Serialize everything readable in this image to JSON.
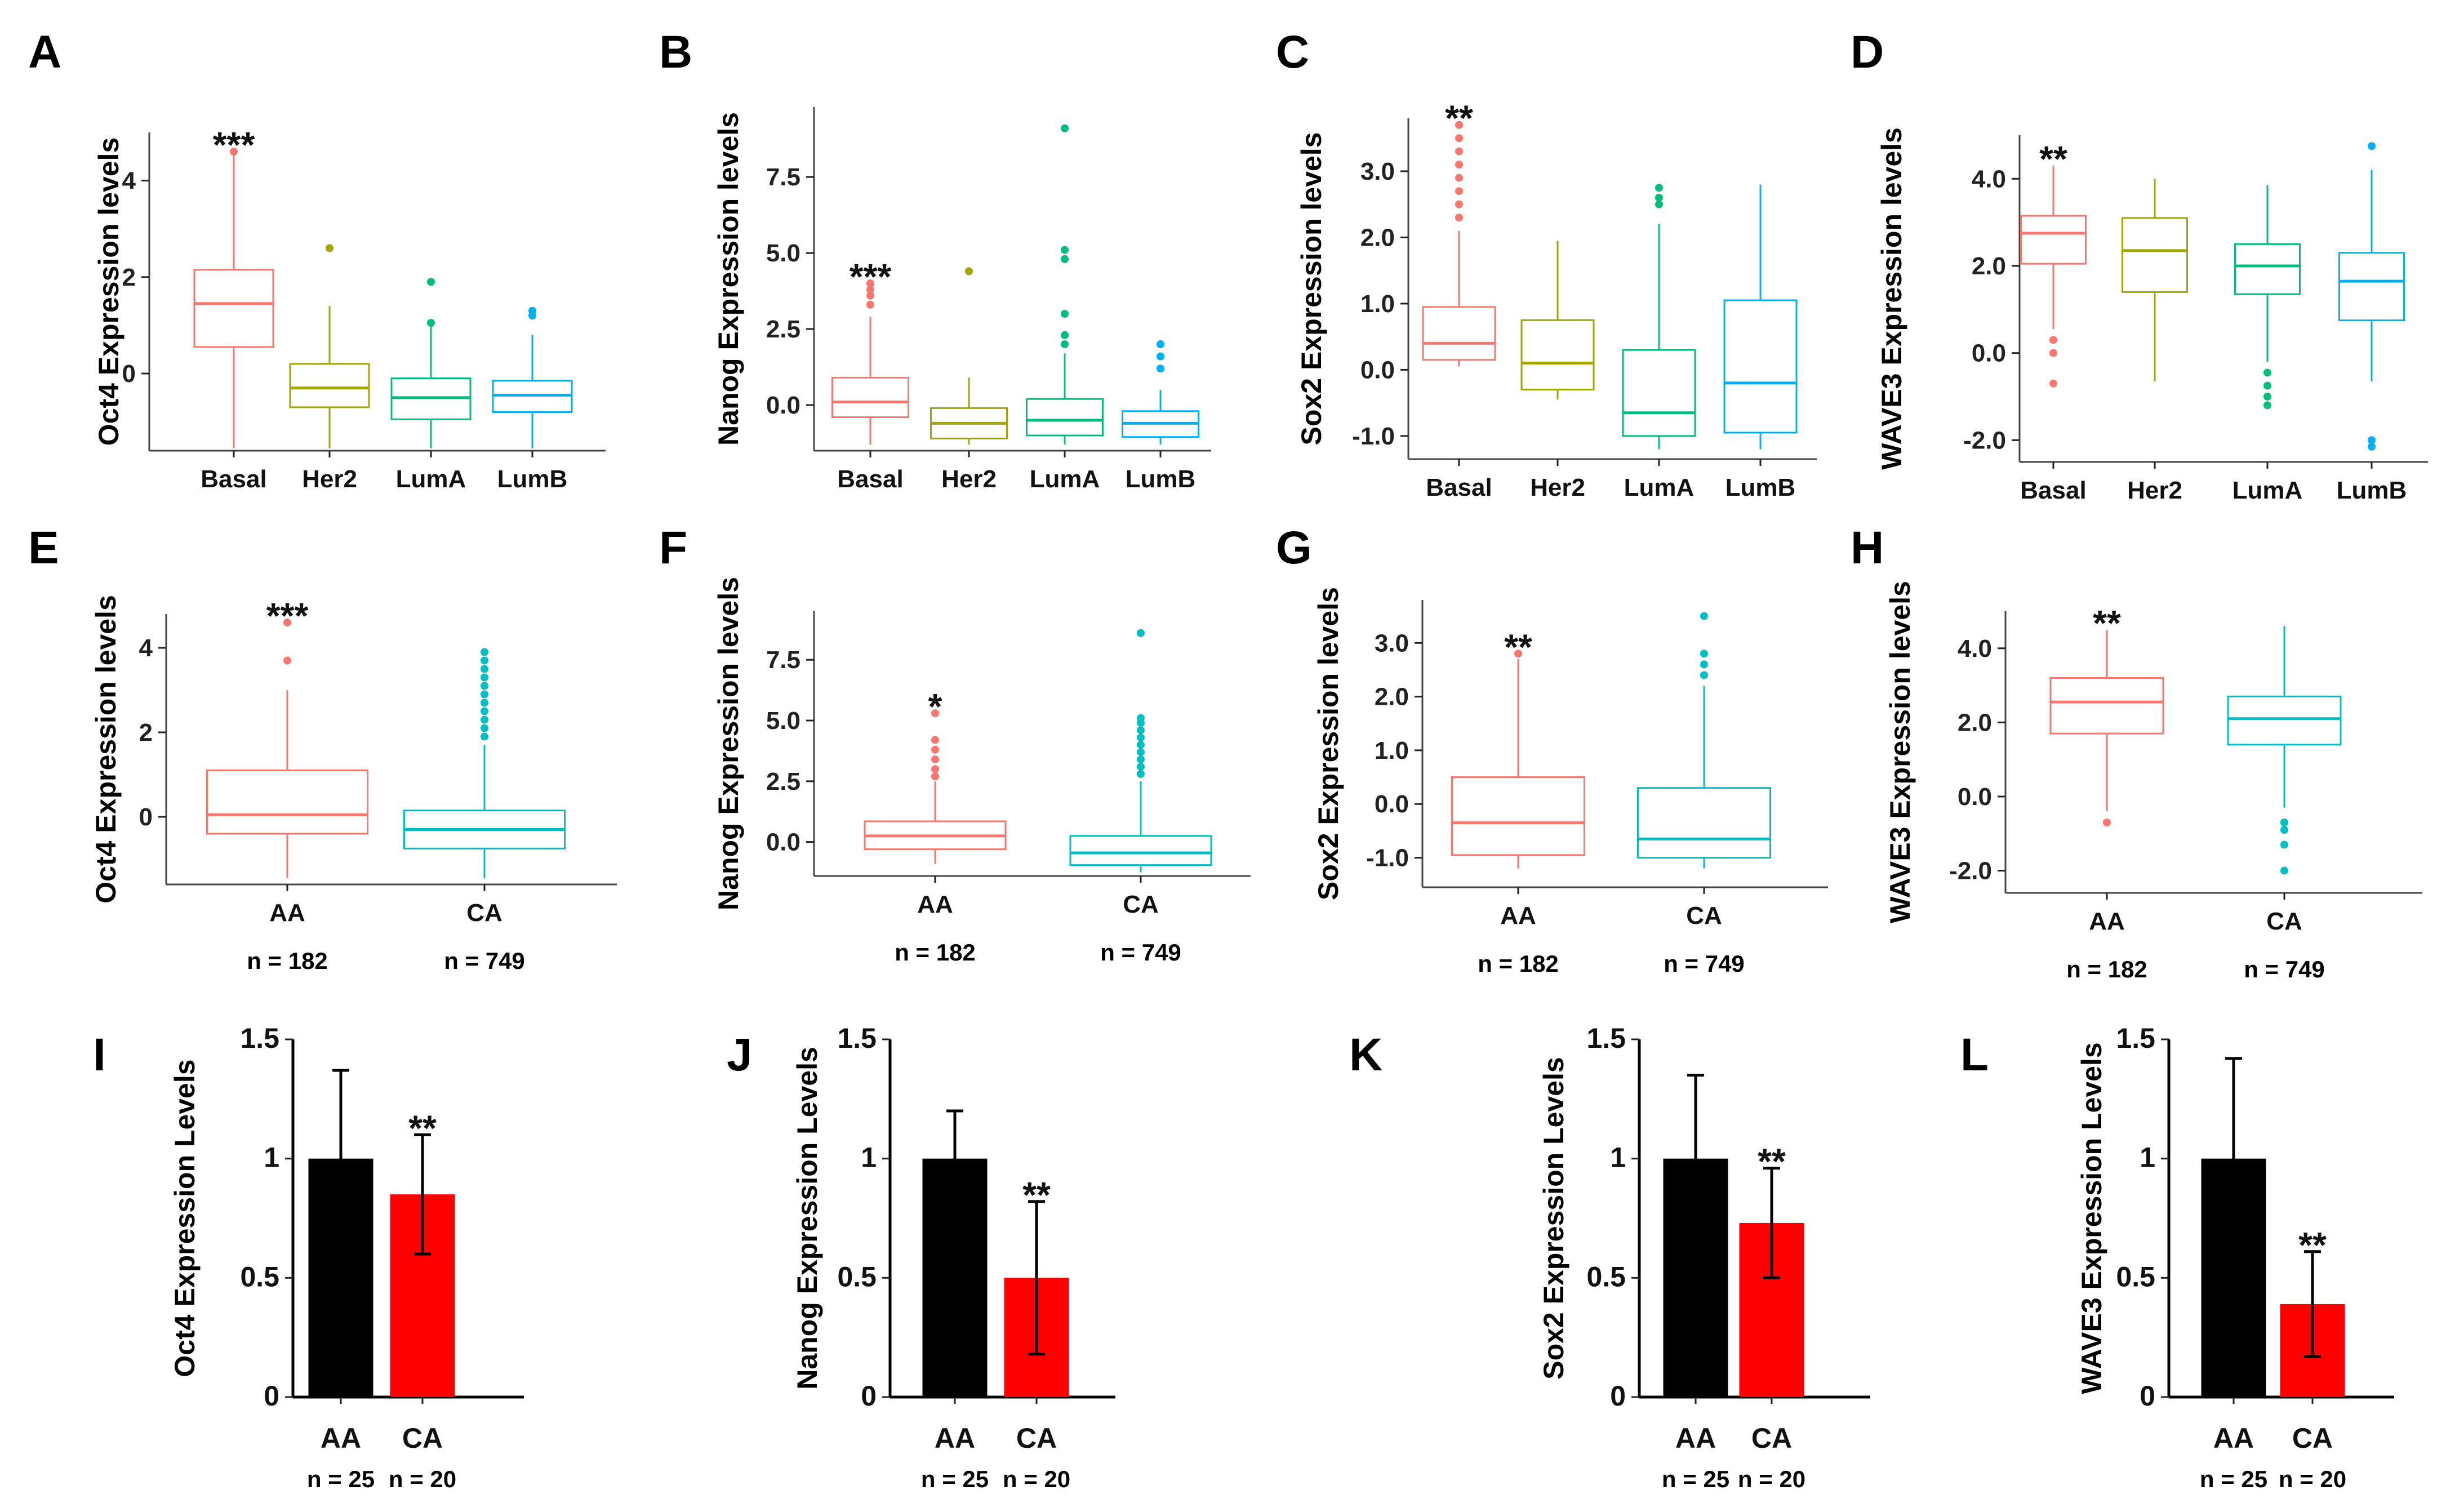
{
  "figure": {
    "colors": {
      "basal": "#f8766d",
      "her2": "#a3a500",
      "luma": "#00bf7d",
      "lumb": "#00b0f6",
      "aa": "#f8766d",
      "ca": "#00bfc4",
      "bar_aa": "#000000",
      "bar_ca": "#ff0000"
    }
  },
  "chart_data": [
    {
      "panel": "A",
      "type": "box",
      "ylabel": "Oct4 Expression levels",
      "categories": [
        "Basal",
        "Her2",
        "LumA",
        "LumB"
      ],
      "yticks": [
        "0",
        "2",
        "4"
      ],
      "ytick_values": [
        0,
        2,
        4
      ],
      "ylim": [
        -1.6,
        5.0
      ],
      "significance": {
        "category": 0,
        "label": "***"
      },
      "boxes": [
        {
          "q1": 0.55,
          "median": 1.45,
          "q3": 2.15,
          "lo": -1.55,
          "hi": 4.6,
          "outliers": [
            4.6
          ]
        },
        {
          "q1": -0.7,
          "median": -0.3,
          "q3": 0.2,
          "lo": -1.55,
          "hi": 1.4,
          "outliers": [
            2.6
          ]
        },
        {
          "q1": -0.95,
          "median": -0.5,
          "q3": -0.1,
          "lo": -1.55,
          "hi": 1.0,
          "outliers": [
            1.9,
            1.05
          ]
        },
        {
          "q1": -0.8,
          "median": -0.45,
          "q3": -0.15,
          "lo": -1.55,
          "hi": 0.8,
          "outliers": [
            1.3,
            1.2
          ]
        }
      ]
    },
    {
      "panel": "B",
      "type": "box",
      "ylabel": "Nanog Expression levels",
      "categories": [
        "Basal",
        "Her2",
        "LumA",
        "LumB"
      ],
      "yticks": [
        "0.0",
        "2.5",
        "5.0",
        "7.5"
      ],
      "ytick_values": [
        0,
        2.5,
        5.0,
        7.5
      ],
      "ylim": [
        -1.5,
        9.8
      ],
      "significance": {
        "category": 0,
        "label": "***"
      },
      "boxes": [
        {
          "q1": -0.4,
          "median": 0.1,
          "q3": 0.9,
          "lo": -1.3,
          "hi": 2.9,
          "outliers": [
            3.3,
            3.6,
            3.8,
            4.0
          ]
        },
        {
          "q1": -1.1,
          "median": -0.6,
          "q3": -0.1,
          "lo": -1.3,
          "hi": 0.9,
          "outliers": [
            4.4
          ]
        },
        {
          "q1": -1.0,
          "median": -0.5,
          "q3": 0.2,
          "lo": -1.3,
          "hi": 1.7,
          "outliers": [
            2.0,
            2.3,
            3.0,
            4.8,
            5.1,
            9.1
          ]
        },
        {
          "q1": -1.05,
          "median": -0.6,
          "q3": -0.2,
          "lo": -1.3,
          "hi": 0.5,
          "outliers": [
            1.2,
            1.6,
            2.0
          ]
        }
      ]
    },
    {
      "panel": "C",
      "type": "box",
      "ylabel": "Sox2 Expression levels",
      "categories": [
        "Basal",
        "Her2",
        "LumA",
        "LumB"
      ],
      "yticks": [
        "-1.0",
        "0.0",
        "1.0",
        "2.0",
        "3.0"
      ],
      "ytick_values": [
        -1,
        0,
        1,
        2,
        3
      ],
      "ylim": [
        -1.35,
        3.8
      ],
      "significance": {
        "category": 0,
        "label": "**"
      },
      "boxes": [
        {
          "q1": 0.15,
          "median": 0.4,
          "q3": 0.95,
          "lo": 0.05,
          "hi": 2.1,
          "outliers": [
            2.3,
            2.5,
            2.7,
            2.9,
            3.1,
            3.3,
            3.5,
            3.7
          ]
        },
        {
          "q1": -0.3,
          "median": 0.1,
          "q3": 0.75,
          "lo": -0.45,
          "hi": 1.95,
          "outliers": []
        },
        {
          "q1": -1.0,
          "median": -0.65,
          "q3": 0.3,
          "lo": -1.2,
          "hi": 2.2,
          "outliers": [
            2.5,
            2.6,
            2.75
          ]
        },
        {
          "q1": -0.95,
          "median": -0.2,
          "q3": 1.05,
          "lo": -1.2,
          "hi": 2.8,
          "outliers": []
        }
      ]
    },
    {
      "panel": "D",
      "type": "box",
      "ylabel": "WAVE3 Expression levels",
      "categories": [
        "Basal",
        "Her2",
        "LumA",
        "LumB"
      ],
      "yticks": [
        "-2.0",
        "0.0",
        "2.0",
        "4.0"
      ],
      "ytick_values": [
        -2,
        0,
        2,
        4
      ],
      "ylim": [
        -2.5,
        5.0
      ],
      "significance": {
        "category": 0,
        "label": "**"
      },
      "boxes": [
        {
          "q1": 2.05,
          "median": 2.75,
          "q3": 3.15,
          "lo": 0.55,
          "hi": 4.3,
          "outliers": [
            0.3,
            0.0,
            -0.7
          ]
        },
        {
          "q1": 1.4,
          "median": 2.35,
          "q3": 3.1,
          "lo": -0.65,
          "hi": 4.0,
          "outliers": []
        },
        {
          "q1": 1.35,
          "median": 2.0,
          "q3": 2.5,
          "lo": -0.2,
          "hi": 3.85,
          "outliers": [
            -0.45,
            -0.75,
            -1.0,
            -1.2
          ]
        },
        {
          "q1": 0.75,
          "median": 1.65,
          "q3": 2.3,
          "lo": -0.65,
          "hi": 4.2,
          "outliers": [
            -2.0,
            -2.15,
            4.75
          ]
        }
      ]
    },
    {
      "panel": "E",
      "type": "box",
      "ylabel": "Oct4 Expression levels",
      "categories": [
        "AA",
        "CA"
      ],
      "n_labels": [
        "n = 182",
        "n = 749"
      ],
      "yticks": [
        "0",
        "2",
        "4"
      ],
      "ytick_values": [
        0,
        2,
        4
      ],
      "ylim": [
        -1.6,
        4.8
      ],
      "significance": {
        "category": 0,
        "label": "***"
      },
      "boxes": [
        {
          "q1": -0.4,
          "median": 0.05,
          "q3": 1.1,
          "lo": -1.45,
          "hi": 3.0,
          "outliers": [
            3.7,
            4.6
          ]
        },
        {
          "q1": -0.75,
          "median": -0.3,
          "q3": 0.15,
          "lo": -1.45,
          "hi": 1.7,
          "outliers": [
            1.9,
            2.1,
            2.3,
            2.5,
            2.7,
            2.9,
            3.1,
            3.3,
            3.5,
            3.7,
            3.9
          ]
        }
      ]
    },
    {
      "panel": "F",
      "type": "box",
      "ylabel": "Nanog Expression levels",
      "categories": [
        "AA",
        "CA"
      ],
      "n_labels": [
        "n = 182",
        "n = 749"
      ],
      "yticks": [
        "0.0",
        "2.5",
        "5.0",
        "7.5"
      ],
      "ytick_values": [
        0,
        2.5,
        5.0,
        7.5
      ],
      "ylim": [
        -1.4,
        9.5
      ],
      "significance": {
        "category": 0,
        "label": "*"
      },
      "boxes": [
        {
          "q1": -0.3,
          "median": 0.25,
          "q3": 0.85,
          "lo": -0.9,
          "hi": 2.5,
          "outliers": [
            2.7,
            3.0,
            3.4,
            3.8,
            4.2,
            5.3
          ]
        },
        {
          "q1": -0.95,
          "median": -0.45,
          "q3": 0.25,
          "lo": -1.25,
          "hi": 2.5,
          "outliers": [
            2.8,
            3.1,
            3.4,
            3.7,
            4.0,
            4.3,
            4.6,
            4.9,
            5.1,
            8.6
          ]
        }
      ]
    },
    {
      "panel": "G",
      "type": "box",
      "ylabel": "Sox2 Expression levels",
      "categories": [
        "AA",
        "CA"
      ],
      "n_labels": [
        "n = 182",
        "n = 749"
      ],
      "yticks": [
        "-1.0",
        "0.0",
        "1.0",
        "2.0",
        "3.0"
      ],
      "ytick_values": [
        -1,
        0,
        1,
        2,
        3
      ],
      "ylim": [
        -1.55,
        3.8
      ],
      "significance": {
        "category": 0,
        "label": "**"
      },
      "boxes": [
        {
          "q1": -0.95,
          "median": -0.35,
          "q3": 0.5,
          "lo": -1.2,
          "hi": 2.7,
          "outliers": [
            2.8
          ]
        },
        {
          "q1": -1.0,
          "median": -0.65,
          "q3": 0.3,
          "lo": -1.2,
          "hi": 2.2,
          "outliers": [
            2.4,
            2.6,
            2.8,
            3.5
          ]
        }
      ]
    },
    {
      "panel": "H",
      "type": "box",
      "ylabel": "WAVE3 Expression levels",
      "categories": [
        "AA",
        "CA"
      ],
      "n_labels": [
        "n = 182",
        "n = 749"
      ],
      "yticks": [
        "-2.0",
        "0.0",
        "2.0",
        "4.0"
      ],
      "ytick_values": [
        -2,
        0,
        2,
        4
      ],
      "ylim": [
        -2.6,
        5.0
      ],
      "significance": {
        "category": 0,
        "label": "**"
      },
      "boxes": [
        {
          "q1": 1.7,
          "median": 2.55,
          "q3": 3.2,
          "lo": -0.4,
          "hi": 4.5,
          "outliers": [
            -0.7
          ]
        },
        {
          "q1": 1.4,
          "median": 2.1,
          "q3": 2.7,
          "lo": -0.3,
          "hi": 4.6,
          "outliers": [
            -0.7,
            -0.9,
            -1.3,
            -2.0
          ]
        }
      ]
    },
    {
      "panel": "I",
      "type": "bar",
      "ylabel": "Oct4 Expression Levels",
      "categories": [
        "AA",
        "CA"
      ],
      "n_labels": [
        "n = 25",
        "n = 20"
      ],
      "values": [
        1.0,
        0.85
      ],
      "errors": [
        0.37,
        0.25
      ],
      "yticks": [
        "0",
        "0.5",
        "1",
        "1.5"
      ],
      "ytick_values": [
        0,
        0.5,
        1,
        1.5
      ],
      "ylim": [
        0,
        1.5
      ],
      "significance": {
        "category": 1,
        "label": "**"
      }
    },
    {
      "panel": "J",
      "type": "bar",
      "ylabel": "Nanog Expression Levels",
      "categories": [
        "AA",
        "CA"
      ],
      "n_labels": [
        "n = 25",
        "n = 20"
      ],
      "values": [
        1.0,
        0.5
      ],
      "errors": [
        0.2,
        0.32
      ],
      "yticks": [
        "0",
        "0.5",
        "1",
        "1.5"
      ],
      "ytick_values": [
        0,
        0.5,
        1,
        1.5
      ],
      "ylim": [
        0,
        1.5
      ],
      "significance": {
        "category": 1,
        "label": "**"
      }
    },
    {
      "panel": "K",
      "type": "bar",
      "ylabel": "Sox2 Expression Levels",
      "categories": [
        "AA",
        "CA"
      ],
      "n_labels": [
        "n = 25",
        "n = 20"
      ],
      "values": [
        1.0,
        0.73
      ],
      "errors": [
        0.35,
        0.23
      ],
      "yticks": [
        "0",
        "0.5",
        "1",
        "1.5"
      ],
      "ytick_values": [
        0,
        0.5,
        1,
        1.5
      ],
      "ylim": [
        0,
        1.5
      ],
      "significance": {
        "category": 1,
        "label": "**"
      }
    },
    {
      "panel": "L",
      "type": "bar",
      "ylabel": "WAVE3 Expression Levels",
      "categories": [
        "AA",
        "CA"
      ],
      "n_labels": [
        "n = 25",
        "n = 20"
      ],
      "values": [
        1.0,
        0.39
      ],
      "errors": [
        0.42,
        0.22
      ],
      "yticks": [
        "0",
        "0.5",
        "1",
        "1.5"
      ],
      "ytick_values": [
        0,
        0.5,
        1,
        1.5
      ],
      "ylim": [
        0,
        1.5
      ],
      "significance": {
        "category": 1,
        "label": "**"
      }
    }
  ]
}
